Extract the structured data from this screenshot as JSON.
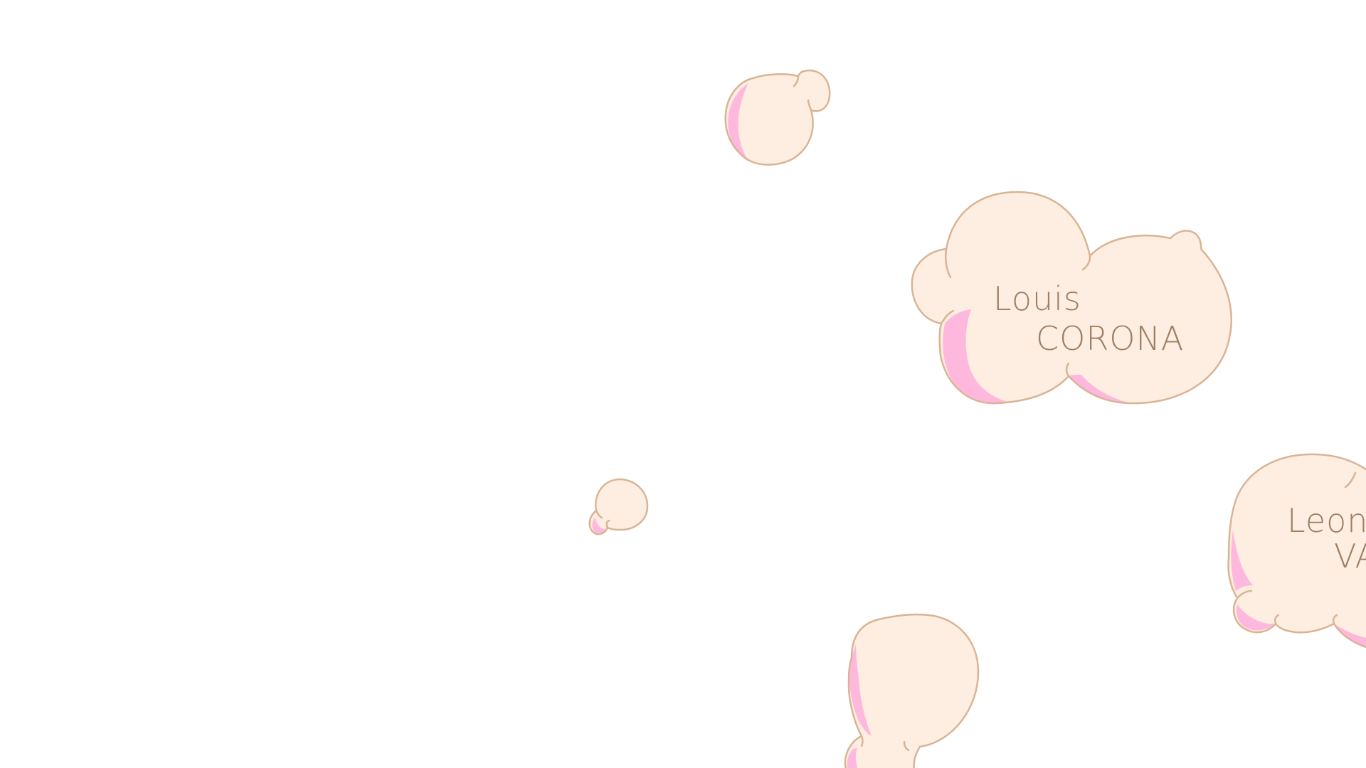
{
  "colors": {
    "background": "#ffffff",
    "cloud_fill": "#fdeee1",
    "cloud_shadow": "#ffb8dd",
    "cloud_stroke": "#d9b494",
    "text": "#9e7e63"
  },
  "clouds": [
    {
      "id": "louis-corona",
      "first_name": "Louis",
      "last_name": "CORONA"
    },
    {
      "id": "leon-va",
      "first_name": "Leon",
      "last_name": "VA"
    }
  ]
}
